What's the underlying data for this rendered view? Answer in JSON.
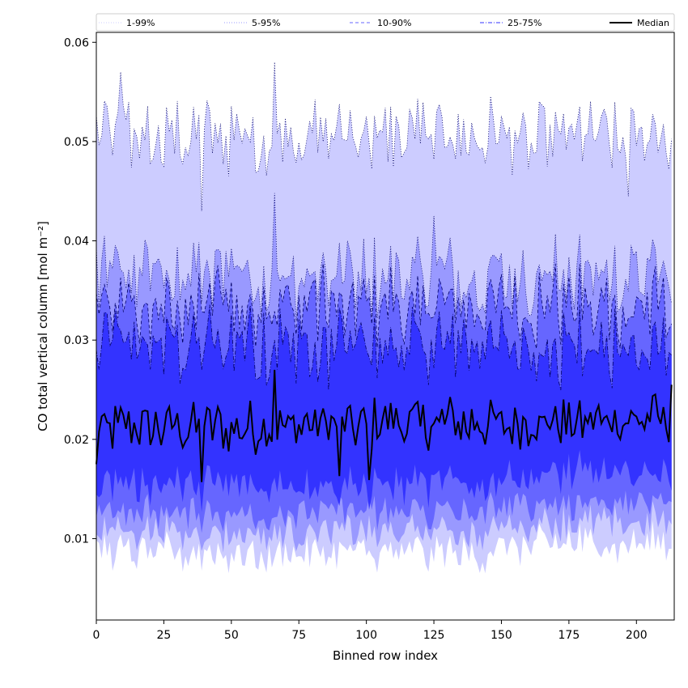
{
  "chart_data": {
    "type": "area",
    "xlabel": "Binned row index",
    "ylabel": "CO total vertical column [mol m⁻²]",
    "xlim": [
      0,
      214
    ],
    "ylim": [
      0.0018,
      0.061
    ],
    "xticks": [
      0,
      25,
      50,
      75,
      100,
      125,
      150,
      175,
      200
    ],
    "yticks": [
      0.01,
      0.02,
      0.03,
      0.04,
      0.05,
      0.06
    ],
    "ytick_labels": [
      "0.01",
      "0.02",
      "0.03",
      "0.04",
      "0.05",
      "0.06"
    ],
    "grid": false,
    "legend_placement": "top (above plot, single row)",
    "legend": [
      {
        "label": "1-99%",
        "style": "dotted",
        "color": "#ccccff"
      },
      {
        "label": "5-95%",
        "style": "dotted",
        "color": "#9999ff"
      },
      {
        "label": "10-90%",
        "style": "dashed",
        "color": "#6666ff"
      },
      {
        "label": "25-75%",
        "style": "dashdot",
        "color": "#3333ff"
      },
      {
        "label": "Median",
        "style": "solid",
        "color": "#000000"
      }
    ],
    "x_range": [
      0,
      213
    ],
    "series_summary": [
      {
        "name": "1-99%",
        "upper_mean": 0.0505,
        "lower_mean": 0.0085,
        "color": "#ccccff"
      },
      {
        "name": "5-95%",
        "upper_mean": 0.0365,
        "lower_mean": 0.0105,
        "color": "#9999ff"
      },
      {
        "name": "10-90%",
        "upper_mean": 0.0335,
        "lower_mean": 0.0125,
        "color": "#6666ff"
      },
      {
        "name": "25-75%",
        "upper_mean": 0.0295,
        "lower_mean": 0.0155,
        "color": "#3333ff"
      },
      {
        "name": "Median",
        "mean": 0.021,
        "color": "#000000"
      }
    ],
    "anchor_points": [
      {
        "x": 0,
        "median": 0.0175
      },
      {
        "x": 9,
        "p99": 0.057
      },
      {
        "x": 39,
        "p99": 0.043,
        "median": 0.0157
      },
      {
        "x": 66,
        "p99": 0.058,
        "p95": 0.0448,
        "median": 0.027
      },
      {
        "x": 90,
        "median": 0.0163
      },
      {
        "x": 101,
        "median": 0.0159
      },
      {
        "x": 125,
        "p95": 0.0425
      },
      {
        "x": 197,
        "p99": 0.0445
      },
      {
        "x": 213,
        "median": 0.0255
      }
    ]
  }
}
